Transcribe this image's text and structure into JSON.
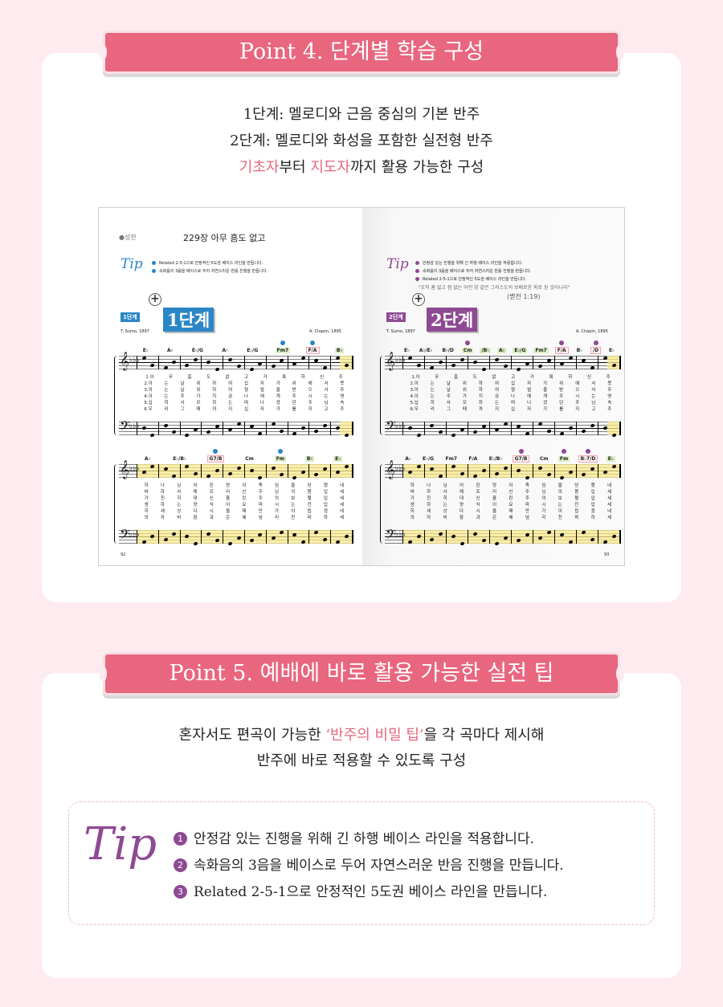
{
  "point4": {
    "banner": "Point 4. 단계별 학습 구성",
    "lines": [
      "1단계: 멜로디와 근음 중심의 기본 반주",
      "2단계: 멜로디와 화성을 포함한 실전형 반주"
    ],
    "line3": {
      "hl1": "기초자",
      "mid": "부터 ",
      "hl2": "지도자",
      "rest": "까지 활용 가능한 구성"
    }
  },
  "sheet": {
    "left": {
      "category": "●성찬",
      "title": "229장 아무 흠도 없고",
      "tip_label": "Tip",
      "tips": [
        "Related 2-5-1으로 안정적인 5도권 베이스 라인을 만듭니다.",
        "속화음의 3음을 베이스로 두어 자연스러운 반음 진행을 만듭니다."
      ],
      "accent": "#2a86c6",
      "badge_small": "1단계",
      "badge_big": "1단계",
      "lyricist": "T. Sumo, 1897",
      "composer": "A. Chapin, 1895",
      "page_number": "92",
      "systems": [
        {
          "chords": [
            {
              "t": "E♭"
            },
            {
              "t": "A♭"
            },
            {
              "t": "E♭/G"
            },
            {
              "t": "A♭"
            },
            {
              "t": "E♭/G"
            },
            {
              "t": "Fm7",
              "g": true,
              "dot": true
            },
            {
              "t": "F/A",
              "p": true,
              "dot": true
            },
            {
              "t": "B♭",
              "g": true
            }
          ],
          "lyrics": [
            "1.아 무 흠 도 없 고 거 룩 하 신 주",
            "2.이 는 날 위 하 여 십 자 가 위 에 서 못",
            "3.이 는 날 위 하 여 형 벌 을 받 으 사 주",
            "4.이 는 주 가 지 금 나 에 게 주 시 는 영",
            "5.십 히 사 모 하 는 며 나 셨 던 주 님 속",
            "6.우 리 그 때 까 지 십 자 가 를 지 고 주"
          ]
        },
        {
          "chords": [
            {
              "t": "A♭"
            },
            {
              "t": "E♭/B♭"
            },
            {
              "t": "G7/B",
              "p": true,
              "dot": true
            },
            {
              "t": "Cm"
            },
            {
              "t": "Fm",
              "g": true,
              "dot": true
            },
            {
              "t": "B♭",
              "g": true
            },
            {
              "t": "E♭",
              "g": true
            }
          ],
          "lyrics": [
            "하 나 님 어 린 양 이 죽 임 을 당 했 네",
            "바 하 사 례 프 리 신 주 님 의 몸 입 세",
            "가 친 히 대 신 흘 린 주 의 보 혈 입 세",
            "생 하 는 양 식 이 요 마 시 는 잔 입 세",
            "히 세 상 다 시 올 때 만 가 이 됩 겠 네",
            "의 자 비 함 과 은 혜 넘 리 친 파 하 세"
          ]
        }
      ]
    },
    "right": {
      "tip_label": "Tip",
      "tips": [
        "안정감 있는 진행을 위해 긴 하행 베이스 라인을 적용합니다.",
        "속화음의 3음을 베이스로 두어 자연스러운 반음 진행을 만듭니다.",
        "Related 2-5-1으로 안정적인 5도권 베이스 라인을 만듭니다."
      ],
      "quote": "\"오직 흠 없고 점 없는 어린 양 같은 그리스도의 보배로운 피로 된 것이니라\"",
      "quote_ref": "(벧전 1:19)",
      "accent": "#8e4a93",
      "badge_small": "2단계",
      "badge_big": "2단계",
      "lyricist": "T. Sumo, 1897",
      "composer": "A. Chapin, 1895",
      "page_number": "93",
      "systems": [
        {
          "chords": [
            {
              "t": "E♭"
            },
            {
              "t": "A♭/E♭"
            },
            {
              "t": "B♭/D"
            },
            {
              "t": "Cm",
              "g": true,
              "dot": true
            },
            {
              "t": "/B♭",
              "g": true
            },
            {
              "t": "A♭",
              "g": true
            },
            {
              "t": "E♭/G",
              "g": true
            },
            {
              "t": "Fm7",
              "g": true
            },
            {
              "t": "F/A",
              "p": true,
              "dot": true
            },
            {
              "t": "B♭"
            },
            {
              "t": "/D",
              "p": true,
              "dot": true
            },
            {
              "t": "E♭"
            }
          ],
          "lyrics": [
            "1.아 무 흠 도 없 고 거 룩 하 신 주",
            "2.이 는 날 위 하 여 십 자 가 위 에 서 못",
            "3.이 는 날 위 하 여 형 벌 을 받 으 사 주",
            "4.이 는 주 가 지 금 나 에 게 주 시 는 영",
            "5.십 히 사 모 하 는 며 나 셨 던 주 님 속",
            "6.우 리 그 때 까 지 십 자 가 를 지 고 주"
          ]
        },
        {
          "chords": [
            {
              "t": "A♭"
            },
            {
              "t": "E♭/G"
            },
            {
              "t": "Fm7"
            },
            {
              "t": "F/A"
            },
            {
              "t": "E♭/B♭"
            },
            {
              "t": "G7/B",
              "p": true,
              "dot": true
            },
            {
              "t": "Cm"
            },
            {
              "t": "Fm",
              "g": true,
              "dot": true
            },
            {
              "t": "B♭7/D",
              "p": true,
              "dot": true
            },
            {
              "t": "E♭",
              "g": true
            }
          ],
          "lyrics": [
            "하 나 님 어 린 양 이 죽 임 을 당 했 네",
            "바 하 사 례 프 리 신 주 님 의 몸 입 세",
            "가 친 히 대 신 흘 린 주 의 보 혈 입 세",
            "생 하 는 양 식 이 요 마 시 는 잔 입 세",
            "히 세 상 다 시 올 때 만 가 이 됩 겠 네",
            "의 자 비 함 과 은 혜 넘 리 친 파 하 세"
          ]
        }
      ]
    }
  },
  "point5": {
    "banner": "Point 5. 예배에 바로 활용 가능한 실전 팁",
    "line1": {
      "pre": "혼자서도 편곡이 가능한 ",
      "hl": "‘반주의 비밀 팁’",
      "post": "을 각 곡마다 제시해"
    },
    "line2": "반주에 바로 적용할 수 있도록 구성",
    "tip_label": "Tip",
    "tips": [
      {
        "num": "1",
        "text": "안정감 있는 진행을 위해 긴 하행 베이스 라인을 적용합니다."
      },
      {
        "num": "2",
        "text": "속화음의 3음을 베이스로 두어 자연스러운 반음 진행을 만듭니다."
      },
      {
        "num": "3",
        "text": "Related 2-5-1으로 안정적인 5도권 베이스 라인을 만듭니다."
      }
    ]
  },
  "colors": {
    "background": "#fdebf0",
    "banner": "#e9667f",
    "highlight_text": "#e9667f",
    "tip_purple": "#8e4a93",
    "stage1_blue": "#2a86c6"
  }
}
